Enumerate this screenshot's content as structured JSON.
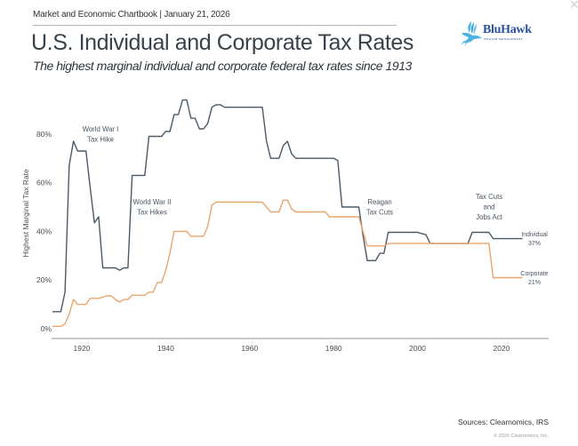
{
  "header": {
    "chartbook_line": "Market and Economic Chartbook | January 21, 2026",
    "title": "U.S. Individual and Corporate Tax Rates",
    "subtitle": "The highest marginal individual and corporate federal tax rates since 1913"
  },
  "logo": {
    "name": "BluHawk",
    "tagline": "WEALTH MANAGEMENT",
    "icon": "hawk-icon",
    "brand_color": "#2a4f9c",
    "icon_color": "#4fb3e8"
  },
  "window": {
    "close_icon": "close-icon"
  },
  "footer": {
    "sources": "Sources: Clearnomics, IRS",
    "copyright": "© 2026 Clearnomics, Inc."
  },
  "chart_data": {
    "type": "line",
    "title": "U.S. Individual and Corporate Tax Rates",
    "xlabel": "",
    "ylabel": "Highest Marginal Tax Rate",
    "xlim": [
      1913,
      2025
    ],
    "ylim": [
      0,
      100
    ],
    "grid": false,
    "x_ticks": [
      1920,
      1940,
      1960,
      1980,
      2000,
      2020
    ],
    "x_tick_labels": [
      "1920",
      "1940",
      "1960",
      "1980",
      "2000",
      "2020"
    ],
    "y_ticks": [
      0,
      20,
      40,
      60,
      80
    ],
    "y_tick_labels": [
      "0%",
      "20%",
      "40%",
      "60%",
      "80%"
    ],
    "x": [
      1913,
      1914,
      1915,
      1916,
      1917,
      1918,
      1919,
      1920,
      1921,
      1922,
      1923,
      1924,
      1925,
      1926,
      1927,
      1928,
      1929,
      1930,
      1931,
      1932,
      1933,
      1934,
      1935,
      1936,
      1937,
      1938,
      1939,
      1940,
      1941,
      1942,
      1943,
      1944,
      1945,
      1946,
      1947,
      1948,
      1949,
      1950,
      1951,
      1952,
      1953,
      1954,
      1955,
      1956,
      1957,
      1958,
      1959,
      1960,
      1961,
      1962,
      1963,
      1964,
      1965,
      1966,
      1967,
      1968,
      1969,
      1970,
      1971,
      1972,
      1973,
      1974,
      1975,
      1976,
      1977,
      1978,
      1979,
      1980,
      1981,
      1982,
      1983,
      1984,
      1985,
      1986,
      1987,
      1988,
      1989,
      1990,
      1991,
      1992,
      1993,
      1994,
      1995,
      1996,
      1997,
      1998,
      1999,
      2000,
      2001,
      2002,
      2003,
      2004,
      2005,
      2006,
      2007,
      2008,
      2009,
      2010,
      2011,
      2012,
      2013,
      2014,
      2015,
      2016,
      2017,
      2018,
      2019,
      2020,
      2021,
      2022,
      2023,
      2024,
      2025
    ],
    "series": [
      {
        "name": "Individual",
        "end_label": "Individual",
        "end_value_label": "37%",
        "color": "#4b5a68",
        "values": [
          7,
          7,
          7,
          15,
          67,
          77,
          73,
          73,
          73,
          58,
          43.5,
          46,
          25,
          25,
          25,
          25,
          24,
          25,
          25,
          63,
          63,
          63,
          63,
          79,
          79,
          79,
          79,
          81.1,
          81,
          88,
          88,
          94,
          94,
          86.45,
          86.45,
          82.13,
          82.13,
          84.36,
          91,
          92,
          92,
          91,
          91,
          91,
          91,
          91,
          91,
          91,
          91,
          91,
          91,
          77,
          70,
          70,
          70,
          75.25,
          77,
          71.75,
          70,
          70,
          70,
          70,
          70,
          70,
          70,
          70,
          70,
          70,
          69.13,
          50,
          50,
          50,
          50,
          50,
          38.5,
          28,
          28,
          28,
          31,
          31,
          39.6,
          39.6,
          39.6,
          39.6,
          39.6,
          39.6,
          39.6,
          39.6,
          39.1,
          38.6,
          35,
          35,
          35,
          35,
          35,
          35,
          35,
          35,
          35,
          35,
          39.6,
          39.6,
          39.6,
          39.6,
          39.6,
          37,
          37,
          37,
          37,
          37,
          37,
          37,
          37
        ]
      },
      {
        "name": "Corporate",
        "end_label": "Corporate",
        "end_value_label": "21%",
        "color": "#e9a56c",
        "values": [
          1,
          1,
          1,
          2,
          6,
          12,
          10,
          10,
          10,
          12.5,
          12.5,
          12.5,
          13,
          13.5,
          13.5,
          12,
          11,
          12,
          12,
          13.75,
          13.75,
          13.75,
          13.75,
          15,
          15,
          19,
          19,
          24,
          31,
          40,
          40,
          40,
          40,
          38,
          38,
          38,
          38,
          42,
          50.75,
          52,
          52,
          52,
          52,
          52,
          52,
          52,
          52,
          52,
          52,
          52,
          52,
          50,
          48,
          48,
          48,
          52.8,
          52.8,
          49.2,
          48,
          48,
          48,
          48,
          48,
          48,
          48,
          48,
          46,
          46,
          46,
          46,
          46,
          46,
          46,
          46,
          40,
          34,
          34,
          34,
          34,
          34,
          35,
          35,
          35,
          35,
          35,
          35,
          35,
          35,
          35,
          35,
          35,
          35,
          35,
          35,
          35,
          35,
          35,
          35,
          35,
          35,
          35,
          35,
          35,
          35,
          35,
          21,
          21,
          21,
          21,
          21,
          21,
          21,
          21
        ]
      }
    ],
    "annotations": [
      {
        "name": "world-war-1",
        "lines": [
          "World War I",
          "Tax Hike"
        ]
      },
      {
        "name": "world-war-2",
        "lines": [
          "World War II",
          "Tax Hikes"
        ]
      },
      {
        "name": "reagan",
        "lines": [
          "Reagan",
          "Tax Cuts"
        ]
      },
      {
        "name": "tcja",
        "lines": [
          "Tax Cuts",
          "and",
          "Jobs Act"
        ]
      }
    ]
  }
}
